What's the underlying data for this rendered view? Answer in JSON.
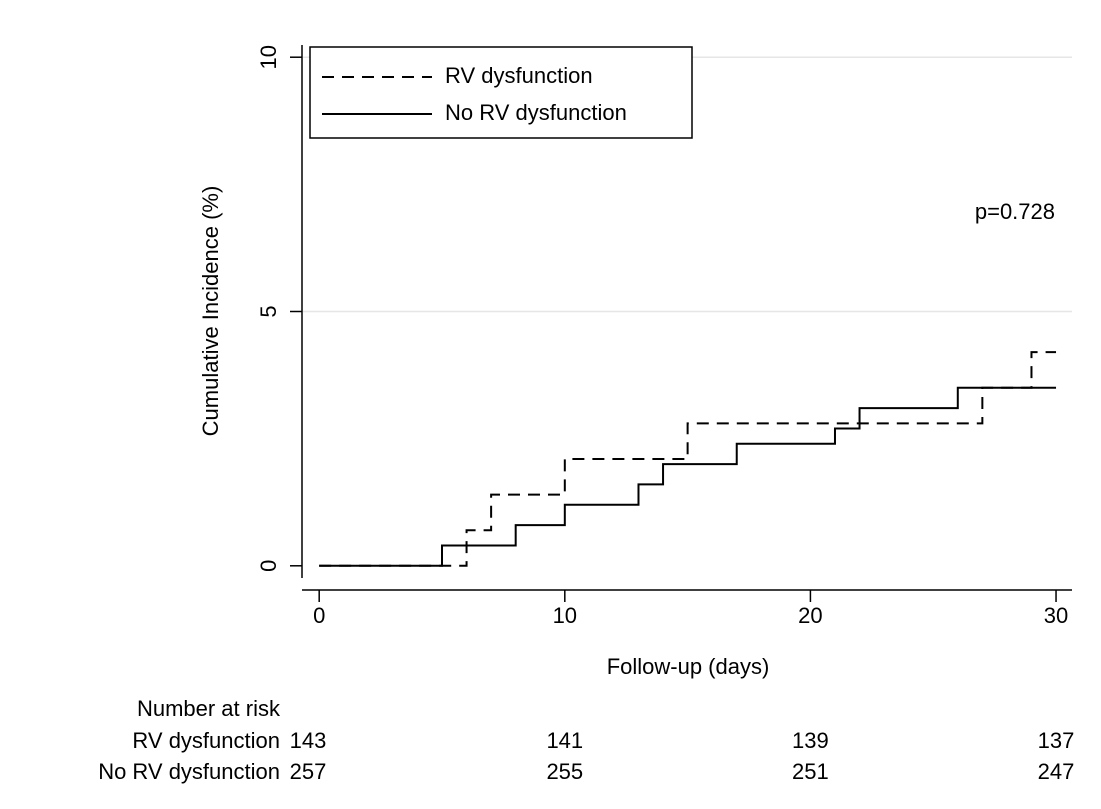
{
  "chart_data": {
    "type": "step",
    "x_label": "Follow-up (days)",
    "y_label": "Cumulative Incidence (%)",
    "annotation": "p=0.728",
    "xlim": [
      -0.7,
      30.65
    ],
    "ylim": [
      -0.24,
      10.24
    ],
    "xticks": [
      0,
      10,
      20,
      30
    ],
    "yticks": [
      0,
      5,
      10
    ],
    "grid": true,
    "legend": "top-left",
    "series": [
      {
        "name": "RV dysfunction",
        "color": "#000000",
        "dash": "dashed",
        "x": [
          0,
          6,
          7,
          10,
          15,
          27,
          29,
          30
        ],
        "values": [
          0,
          0.7,
          1.4,
          2.1,
          2.8,
          3.5,
          4.2,
          4.2
        ],
        "at_risk": [
          143,
          141,
          139,
          137
        ]
      },
      {
        "name": "No RV dysfunction",
        "color": "#000000",
        "dash": "solid",
        "x": [
          0,
          5,
          8,
          10,
          13,
          14,
          17,
          21,
          22,
          26,
          30
        ],
        "values": [
          0,
          0.4,
          0.8,
          1.2,
          1.6,
          2.0,
          2.4,
          2.7,
          3.1,
          3.5,
          3.5
        ],
        "at_risk": [
          257,
          255,
          251,
          247
        ]
      }
    ],
    "risk_table_title": "Number at risk"
  }
}
